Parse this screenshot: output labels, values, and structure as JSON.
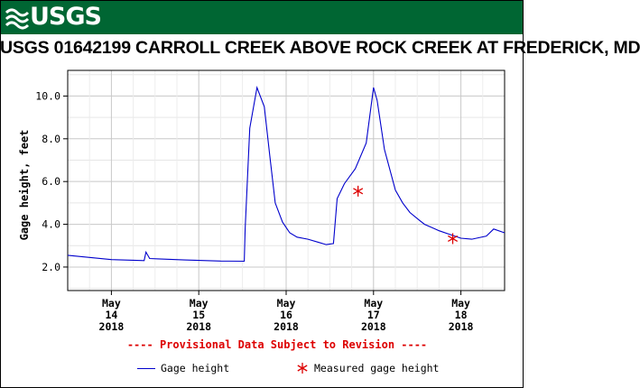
{
  "header": {
    "logo_text": "USGS"
  },
  "chart_data": {
    "type": "line",
    "title": "USGS 01642199 CARROLL CREEK ABOVE ROCK CREEK AT FREDERICK, MD",
    "ylabel": "Gage height, feet",
    "xlabel": "",
    "ylim": [
      0.9,
      11.2
    ],
    "xlim": [
      "2018-05-13 12:00",
      "2018-05-18 12:00"
    ],
    "y_ticks": [
      "2.0",
      "4.0",
      "6.0",
      "8.0",
      "10.0"
    ],
    "y_tick_values": [
      2.0,
      4.0,
      6.0,
      8.0,
      10.0
    ],
    "x_ticks": [
      {
        "month": "May",
        "day": "14",
        "year": "2018",
        "at": "2018-05-14 00:00"
      },
      {
        "month": "May",
        "day": "15",
        "year": "2018",
        "at": "2018-05-15 00:00"
      },
      {
        "month": "May",
        "day": "16",
        "year": "2018",
        "at": "2018-05-16 00:00"
      },
      {
        "month": "May",
        "day": "17",
        "year": "2018",
        "at": "2018-05-17 00:00"
      },
      {
        "month": "May",
        "day": "18",
        "year": "2018",
        "at": "2018-05-18 00:00"
      }
    ],
    "grid": true,
    "series": [
      {
        "name": "Gage height",
        "color": "#0000cc",
        "x": [
          "2018-05-13 12:00",
          "2018-05-13 18:00",
          "2018-05-14 00:00",
          "2018-05-14 06:00",
          "2018-05-14 09:00",
          "2018-05-14 09:30",
          "2018-05-14 10:30",
          "2018-05-14 13:00",
          "2018-05-14 20:00",
          "2018-05-15 06:00",
          "2018-05-15 12:30",
          "2018-05-15 12:45",
          "2018-05-15 14:00",
          "2018-05-15 16:00",
          "2018-05-15 18:00",
          "2018-05-15 19:30",
          "2018-05-15 21:00",
          "2018-05-15 23:00",
          "2018-05-16 01:00",
          "2018-05-16 03:00",
          "2018-05-16 06:00",
          "2018-05-16 09:00",
          "2018-05-16 11:00",
          "2018-05-16 13:00",
          "2018-05-16 14:00",
          "2018-05-16 16:00",
          "2018-05-16 19:00",
          "2018-05-16 22:00",
          "2018-05-17 00:00",
          "2018-05-17 01:00",
          "2018-05-17 03:00",
          "2018-05-17 06:00",
          "2018-05-17 08:00",
          "2018-05-17 10:00",
          "2018-05-17 12:30",
          "2018-05-17 14:00",
          "2018-05-17 16:00",
          "2018-05-17 18:00",
          "2018-05-17 21:00",
          "2018-05-18 00:00",
          "2018-05-18 03:00",
          "2018-05-18 07:00",
          "2018-05-18 09:00",
          "2018-05-18 12:00"
        ],
        "values": [
          2.55,
          2.45,
          2.35,
          2.32,
          2.3,
          2.7,
          2.4,
          2.38,
          2.33,
          2.28,
          2.27,
          3.8,
          8.5,
          10.4,
          9.5,
          7.2,
          5.0,
          4.1,
          3.6,
          3.4,
          3.3,
          3.15,
          3.05,
          3.1,
          5.2,
          5.9,
          6.6,
          7.8,
          10.4,
          9.8,
          7.5,
          5.6,
          5.0,
          4.55,
          4.2,
          4.0,
          3.85,
          3.7,
          3.52,
          3.35,
          3.3,
          3.45,
          3.78,
          3.6
        ]
      },
      {
        "name": "Measured gage height",
        "color": "#dd0000",
        "marker": "asterisk",
        "x": [
          "2018-05-16 19:45",
          "2018-05-17 21:45"
        ],
        "values": [
          5.55,
          3.33
        ]
      }
    ]
  },
  "footer": {
    "provisional_note": "---- Provisional Data Subject to Revision ----"
  },
  "legend": {
    "line_label": "Gage height",
    "marker_label": "Measured gage height",
    "placement": "bottom"
  }
}
